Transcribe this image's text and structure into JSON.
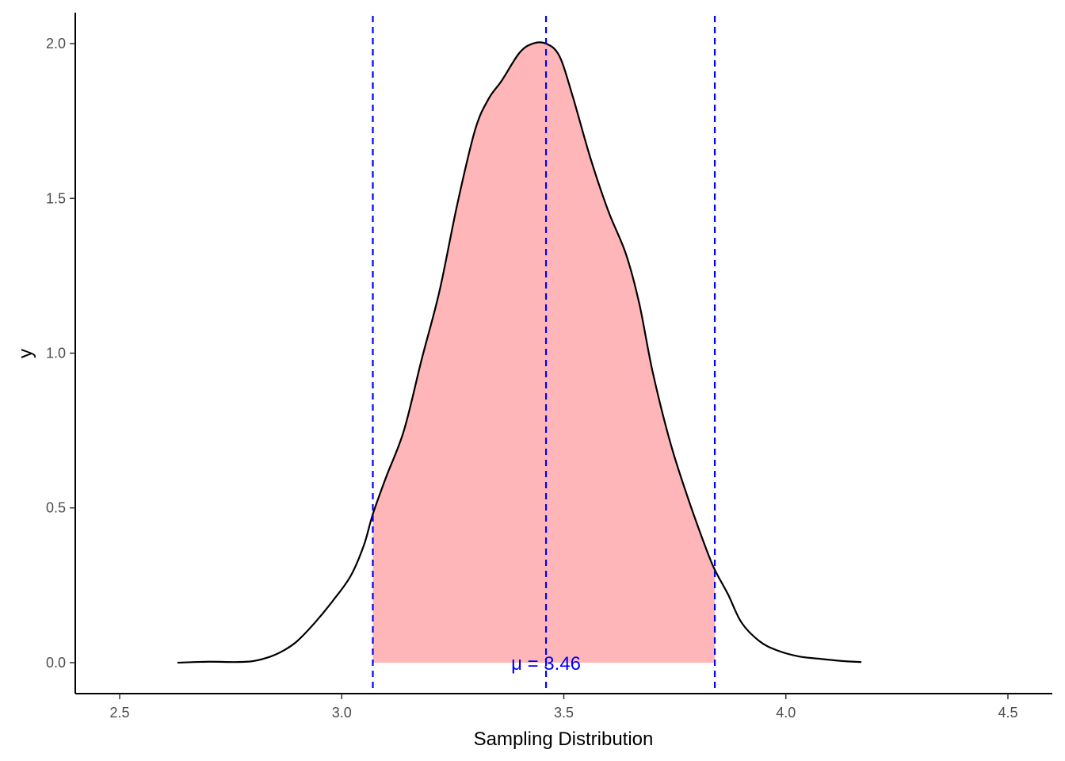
{
  "chart_data": {
    "type": "area",
    "title": "",
    "xlabel": "Sampling Distribution",
    "ylabel": "y",
    "xlim": [
      2.4,
      4.6
    ],
    "ylim": [
      -0.1,
      2.1
    ],
    "x_ticks": [
      2.5,
      3.0,
      3.5,
      4.0,
      4.5
    ],
    "x_tick_labels": [
      "2.5",
      "3.0",
      "3.5",
      "4.0",
      "4.5"
    ],
    "y_ticks": [
      0.0,
      0.5,
      1.0,
      1.5,
      2.0
    ],
    "y_tick_labels": [
      "0.0",
      "0.5",
      "1.0",
      "1.5",
      "2.0"
    ],
    "grid": false,
    "legend": "none",
    "density": {
      "x": [
        2.63,
        2.7,
        2.76,
        2.8,
        2.84,
        2.87,
        2.9,
        2.94,
        2.98,
        3.02,
        3.05,
        3.07,
        3.1,
        3.14,
        3.18,
        3.22,
        3.26,
        3.3,
        3.33,
        3.36,
        3.4,
        3.43,
        3.46,
        3.49,
        3.52,
        3.56,
        3.6,
        3.64,
        3.67,
        3.7,
        3.74,
        3.78,
        3.82,
        3.84,
        3.87,
        3.9,
        3.94,
        3.98,
        4.03,
        4.08,
        4.13,
        4.17
      ],
      "y": [
        0.0,
        0.003,
        0.002,
        0.005,
        0.02,
        0.04,
        0.07,
        0.13,
        0.2,
        0.28,
        0.38,
        0.48,
        0.6,
        0.75,
        0.98,
        1.2,
        1.48,
        1.72,
        1.82,
        1.88,
        1.97,
        2.0,
        2.0,
        1.96,
        1.83,
        1.63,
        1.46,
        1.32,
        1.16,
        0.94,
        0.71,
        0.53,
        0.37,
        0.3,
        0.22,
        0.13,
        0.07,
        0.04,
        0.02,
        0.012,
        0.005,
        0.002
      ]
    },
    "shaded_region": {
      "from": 3.07,
      "to": 3.84,
      "color": "#FFB6B8"
    },
    "curve_color": "#000000",
    "vlines": [
      {
        "x": 3.07,
        "color": "#0000FF",
        "style": "dashed"
      },
      {
        "x": 3.46,
        "color": "#0000FF",
        "style": "dashed"
      },
      {
        "x": 3.84,
        "color": "#0000FF",
        "style": "dashed"
      }
    ],
    "annotation": {
      "text": "μ = 3.46",
      "x": 3.46,
      "y": 0.0,
      "color": "#0000FF"
    }
  }
}
